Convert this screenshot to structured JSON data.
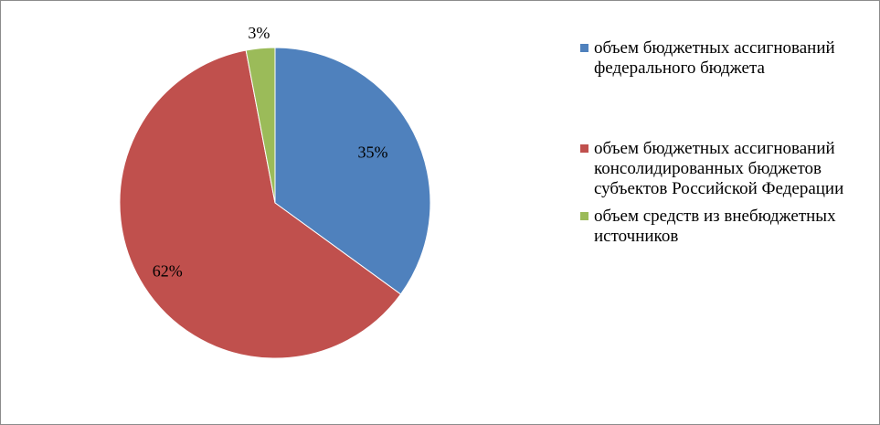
{
  "chart_data": {
    "type": "pie",
    "title": "",
    "slices": [
      {
        "label": "объем бюджетных ассигнований федерального бюджета",
        "value": 35,
        "data_label": "35%",
        "color": "#4F81BD"
      },
      {
        "label": "объем бюджетных ассигнований консолидированных бюджетов субъектов Российской Федерации",
        "value": 62,
        "data_label": "62%",
        "color": "#C0504D"
      },
      {
        "label": "объем средств из внебюджетных источников",
        "value": 3,
        "data_label": "3%",
        "color": "#9BBB59"
      }
    ],
    "legend_position": "right"
  }
}
